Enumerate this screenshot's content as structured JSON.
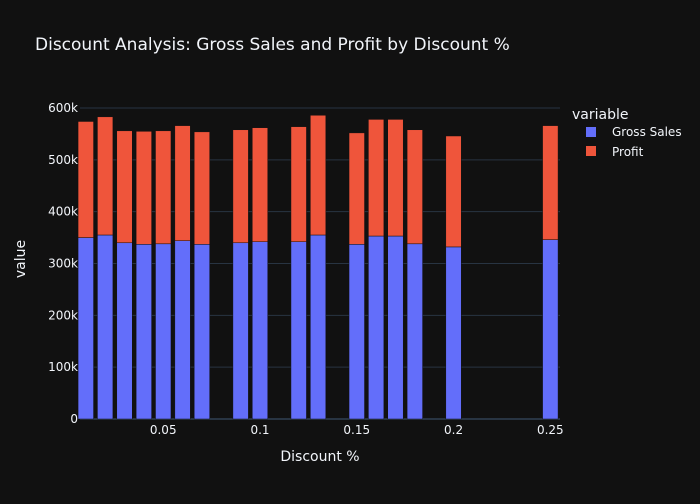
{
  "chart_data": {
    "type": "bar",
    "barmode": "stack",
    "title": "Discount Analysis: Gross Sales and Profit by Discount %",
    "xlabel": "Discount %",
    "ylabel": "value",
    "legend_title": "variable",
    "legend_position": "right",
    "xlim": [
      0.007,
      0.255
    ],
    "ylim": [
      0,
      600000
    ],
    "x_ticks": [
      0.05,
      0.1,
      0.15,
      0.2,
      0.25
    ],
    "x_tick_labels": [
      "0.05",
      "0.1",
      "0.15",
      "0.2",
      "0.25"
    ],
    "y_ticks": [
      0,
      100000,
      200000,
      300000,
      400000,
      500000,
      600000
    ],
    "y_tick_labels": [
      "0",
      "100k",
      "200k",
      "300k",
      "400k",
      "500k",
      "600k"
    ],
    "grid": true,
    "x": [
      0.01,
      0.02,
      0.03,
      0.04,
      0.05,
      0.06,
      0.07,
      0.09,
      0.1,
      0.12,
      0.13,
      0.15,
      0.16,
      0.17,
      0.18,
      0.2,
      0.25
    ],
    "series": [
      {
        "name": "Gross Sales",
        "color": "#636efa",
        "values": [
          350000,
          355000,
          340000,
          337000,
          338000,
          344000,
          337000,
          340000,
          342000,
          342000,
          355000,
          337000,
          353000,
          353000,
          338000,
          332000,
          346000
        ]
      },
      {
        "name": "Profit",
        "color": "#ef553b",
        "values": [
          224000,
          228000,
          216000,
          218000,
          218000,
          222000,
          217000,
          218000,
          220000,
          222000,
          231000,
          215000,
          225000,
          225000,
          220000,
          214000,
          220000
        ]
      }
    ],
    "colors": {
      "background": "#111111",
      "plot_background": "#111111",
      "grid": "#283442",
      "text": "#f2f5fa",
      "bar_outline": "#111111"
    }
  }
}
